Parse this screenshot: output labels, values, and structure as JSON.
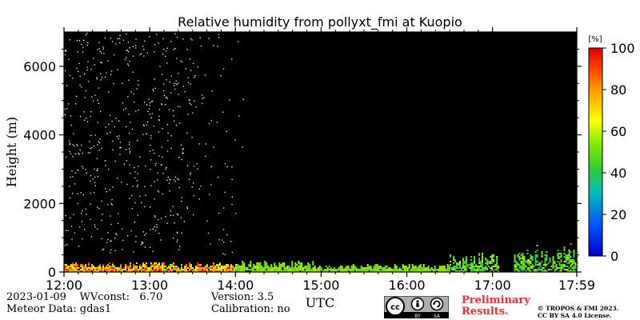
{
  "chart_data": {
    "type": "heatmap",
    "title": "Relative humidity from pollyxt_fmi at Kuopio",
    "xlabel": "UTC",
    "ylabel": "Height (m)",
    "x_tick_labels": [
      "12:00",
      "13:00",
      "14:00",
      "15:00",
      "16:00",
      "17:00",
      "17:59"
    ],
    "x_range_hours": [
      12.0,
      17.983
    ],
    "y_ticks": [
      0,
      2000,
      4000,
      6000
    ],
    "y_range_m": [
      0,
      7000
    ],
    "colorbar": {
      "unit": "[%]",
      "ticks": [
        0,
        20,
        40,
        60,
        80,
        100
      ],
      "range": [
        0,
        100
      ],
      "colormap": "jet"
    },
    "background_color": "#000000",
    "series": [
      {
        "start_hour": 12.0,
        "end_hour": 14.0,
        "height_m": [
          0,
          300
        ],
        "rh_percent": [
          20,
          100
        ]
      },
      {
        "start_hour": 14.0,
        "end_hour": 14.9,
        "height_m": [
          0,
          350
        ],
        "rh_percent": [
          40,
          60
        ]
      },
      {
        "start_hour": 14.9,
        "end_hour": 16.5,
        "height_m": [
          0,
          250
        ],
        "rh_percent": [
          40,
          60
        ]
      },
      {
        "start_hour": 16.5,
        "end_hour": 17.07,
        "height_m": [
          0,
          600
        ],
        "rh_percent": [
          20,
          60
        ]
      },
      {
        "start_hour": 17.25,
        "end_hour": 17.983,
        "height_m": [
          0,
          900
        ],
        "rh_percent": [
          20,
          60
        ]
      }
    ],
    "data_gap_hours": [
      17.07,
      17.25
    ],
    "noise_region_hours": [
      12.0,
      14.2
    ],
    "noise_region_height_m": [
      500,
      7000
    ]
  },
  "footer": {
    "date": "2023-01-09",
    "wvconst_label": "WVconst:",
    "wvconst_value": "6.70",
    "meteor_label": "Meteor Data:",
    "meteor_value": "gdas1",
    "version_label": "Version:",
    "version_value": "3.5",
    "calibration_label": "Calibration:",
    "calibration_value": "no",
    "preliminary_line1": "Preliminary",
    "preliminary_line2": "Results.",
    "copyright_line1": "© TROPOS & FMI 2023.",
    "copyright_line2": "CC BY SA 4.0 License.",
    "cc_by_label": "BY",
    "cc_sa_label": "SA"
  }
}
